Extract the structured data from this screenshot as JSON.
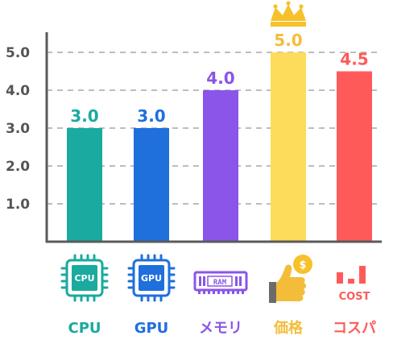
{
  "chart_data": {
    "type": "bar",
    "categories": [
      "CPU",
      "GPU",
      "メモリ",
      "価格",
      "コスパ"
    ],
    "values": [
      3.0,
      3.0,
      4.0,
      5.0,
      4.5
    ],
    "value_labels": [
      "3.0",
      "3.0",
      "4.0",
      "5.0",
      "4.5"
    ],
    "colors": [
      "#1aaa9f",
      "#1f6fdc",
      "#8a55e8",
      "#fddc5c",
      "#ff5a5a"
    ],
    "label_colors": [
      "#1aaa9f",
      "#1f6fdc",
      "#8a55e8",
      "#f3bd3a",
      "#ff5a5a"
    ],
    "yticks": [
      "1.0",
      "2.0",
      "3.0",
      "4.0",
      "5.0"
    ],
    "ylim": [
      0,
      5.0
    ],
    "grid": true,
    "highlight": "crown-icon on top bar",
    "icons": [
      "cpu-chip-icon",
      "gpu-chip-icon",
      "ram-module-icon",
      "thumbs-up-coin-icon",
      "cost-bars-icon"
    ],
    "icon_texts": {
      "cpu": "CPU",
      "gpu": "GPU",
      "ram": "RAM",
      "cost": "COST",
      "coin": "$"
    }
  }
}
